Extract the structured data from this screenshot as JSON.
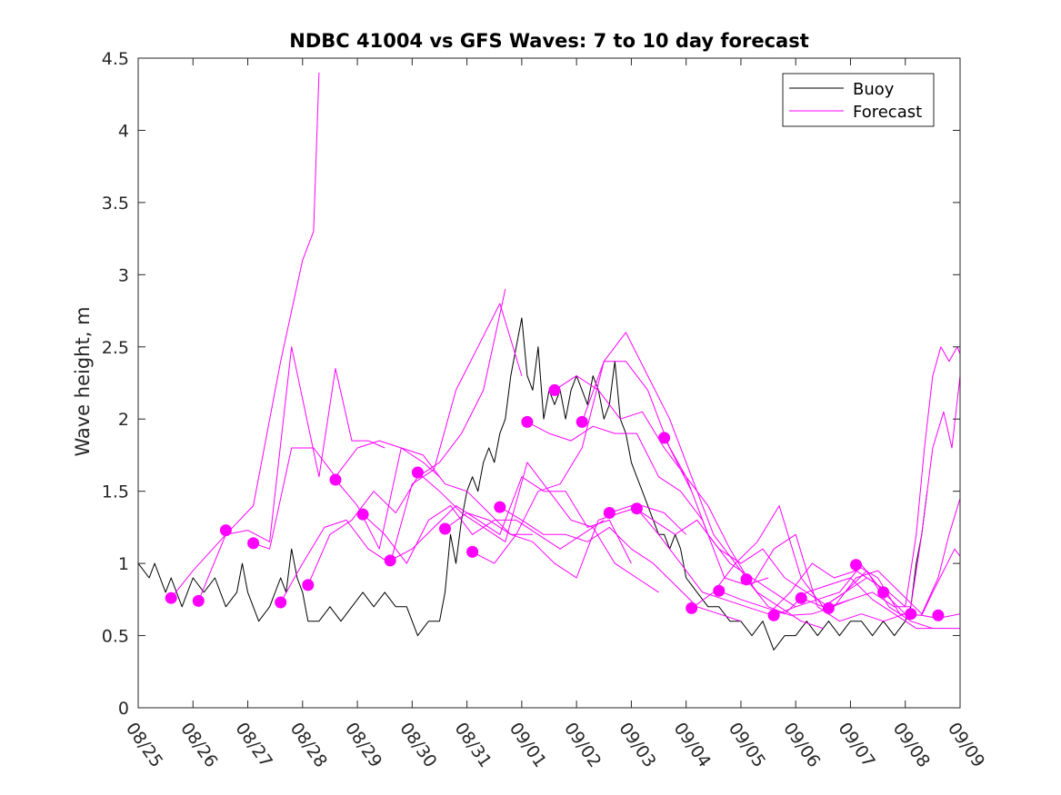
{
  "chart_data": {
    "type": "line",
    "title": "NDBC 41004 vs GFS Waves: 7 to 10 day forecast",
    "xlabel": "",
    "ylabel": "Wave height, m",
    "ylim": [
      0,
      4.5
    ],
    "xlim": [
      0,
      15
    ],
    "y_ticks": [
      0,
      0.5,
      1,
      1.5,
      2,
      2.5,
      3,
      3.5,
      4,
      4.5
    ],
    "y_tick_labels": [
      "0",
      "0.5",
      "1",
      "1.5",
      "2",
      "2.5",
      "3",
      "3.5",
      "4",
      "4.5"
    ],
    "x_ticks": [
      0,
      1,
      2,
      3,
      4,
      5,
      6,
      7,
      8,
      9,
      10,
      11,
      12,
      13,
      14,
      15
    ],
    "x_tick_labels": [
      "08/25",
      "08/26",
      "08/27",
      "08/28",
      "08/29",
      "08/30",
      "08/31",
      "09/01",
      "09/02",
      "09/03",
      "09/04",
      "09/05",
      "09/06",
      "09/07",
      "09/08",
      "09/09"
    ],
    "legend": {
      "placement": "top-right",
      "entries": [
        {
          "label": "Buoy",
          "color": "#000000"
        },
        {
          "label": "Forecast",
          "color": "#ff00ff"
        }
      ]
    },
    "grid": false,
    "colors": {
      "buoy": "#000000",
      "forecast": "#ff00ff"
    },
    "series": [
      {
        "name": "Buoy",
        "x": [
          0,
          0.2,
          0.3,
          0.5,
          0.6,
          0.7,
          0.8,
          0.9,
          1.0,
          1.2,
          1.4,
          1.6,
          1.8,
          1.9,
          2.0,
          2.2,
          2.4,
          2.6,
          2.7,
          2.8,
          2.9,
          3.0,
          3.1,
          3.3,
          3.5,
          3.7,
          3.9,
          4.1,
          4.3,
          4.5,
          4.7,
          4.9,
          5.1,
          5.3,
          5.5,
          5.6,
          5.7,
          5.8,
          5.9,
          6.0,
          6.1,
          6.2,
          6.3,
          6.4,
          6.5,
          6.6,
          6.7,
          6.8,
          6.9,
          7.0,
          7.1,
          7.2,
          7.3,
          7.4,
          7.5,
          7.6,
          7.7,
          7.8,
          7.9,
          8.0,
          8.1,
          8.2,
          8.3,
          8.4,
          8.5,
          8.6,
          8.7,
          8.8,
          8.9,
          9.0,
          9.1,
          9.2,
          9.3,
          9.4,
          9.5,
          9.6,
          9.7,
          9.8,
          9.9,
          10.0,
          10.2,
          10.4,
          10.6,
          10.8,
          11.0,
          11.2,
          11.4,
          11.6,
          11.8,
          12.0,
          12.2,
          12.4,
          12.6,
          12.8,
          13.0,
          13.2,
          13.4,
          13.6,
          13.8,
          14.0,
          14.1,
          14.2,
          14.3,
          14.4
        ],
        "y": [
          1.0,
          0.9,
          1.0,
          0.8,
          0.9,
          0.8,
          0.7,
          0.8,
          0.9,
          0.8,
          0.9,
          0.7,
          0.8,
          1.0,
          0.8,
          0.6,
          0.7,
          0.9,
          0.8,
          1.1,
          0.9,
          0.8,
          0.6,
          0.6,
          0.7,
          0.6,
          0.7,
          0.8,
          0.7,
          0.8,
          0.7,
          0.7,
          0.5,
          0.6,
          0.6,
          0.8,
          1.2,
          1.0,
          1.3,
          1.5,
          1.6,
          1.5,
          1.7,
          1.8,
          1.7,
          1.9,
          2.0,
          2.3,
          2.5,
          2.7,
          2.3,
          2.2,
          2.5,
          2.0,
          2.2,
          2.1,
          2.2,
          2.0,
          2.2,
          2.3,
          2.2,
          2.1,
          2.3,
          2.2,
          2.0,
          2.1,
          2.4,
          2.0,
          1.9,
          1.7,
          1.6,
          1.5,
          1.4,
          1.3,
          1.2,
          1.2,
          1.1,
          1.2,
          1.1,
          0.9,
          0.8,
          0.7,
          0.7,
          0.6,
          0.6,
          0.5,
          0.6,
          0.4,
          0.5,
          0.5,
          0.6,
          0.5,
          0.6,
          0.5,
          0.6,
          0.6,
          0.5,
          0.6,
          0.5,
          0.6,
          0.7,
          1.0,
          1.2,
          1.5
        ]
      },
      {
        "name": "Forecast",
        "x": [
          0.6,
          1.0,
          1.6,
          2.1,
          2.6,
          3.0,
          3.2,
          3.3
        ],
        "y": [
          0.76,
          0.95,
          1.2,
          1.4,
          2.4,
          3.1,
          3.3,
          4.4
        ]
      },
      {
        "name": "Forecast",
        "x": [
          1.1,
          1.6,
          2.0,
          2.4,
          2.8,
          3.3,
          3.6,
          3.9,
          4.2,
          4.5
        ],
        "y": [
          0.74,
          1.2,
          1.23,
          1.15,
          2.5,
          1.6,
          2.35,
          1.85,
          1.85,
          1.8
        ]
      },
      {
        "name": "Forecast",
        "x": [
          2.1,
          2.4,
          2.8,
          3.2,
          3.6,
          4.0,
          4.4,
          4.8,
          5.2,
          5.5
        ],
        "y": [
          1.14,
          1.1,
          1.8,
          1.8,
          1.6,
          1.8,
          1.85,
          1.8,
          1.7,
          1.6
        ]
      },
      {
        "name": "Forecast",
        "x": [
          2.6,
          3.0,
          3.4,
          3.8,
          4.2,
          4.6,
          5.0,
          5.4,
          5.8,
          6.2,
          6.6,
          7.0
        ],
        "y": [
          0.73,
          1.0,
          1.25,
          1.3,
          1.1,
          1.0,
          1.55,
          1.65,
          2.2,
          2.5,
          2.8,
          2.3
        ]
      },
      {
        "name": "Forecast",
        "x": [
          3.1,
          3.5,
          3.9,
          4.3,
          4.7,
          5.1,
          5.5,
          5.9,
          6.3,
          6.7
        ],
        "y": [
          0.85,
          1.2,
          1.3,
          1.5,
          1.35,
          1.6,
          1.7,
          1.9,
          2.2,
          2.9
        ]
      },
      {
        "name": "Forecast",
        "x": [
          3.6,
          4.0,
          4.4,
          4.8,
          5.2,
          5.6,
          6.0,
          6.4,
          6.8,
          7.2
        ],
        "y": [
          1.58,
          1.4,
          1.1,
          1.8,
          1.75,
          1.55,
          1.5,
          1.35,
          1.2,
          1.2
        ]
      },
      {
        "name": "Forecast",
        "x": [
          4.1,
          4.5,
          4.9,
          5.3,
          5.7,
          6.1,
          6.5,
          6.9,
          7.3,
          7.7,
          8.1,
          8.5
        ],
        "y": [
          1.34,
          1.2,
          1.0,
          1.3,
          1.4,
          1.2,
          1.3,
          1.3,
          1.2,
          1.1,
          1.2,
          1.3
        ]
      },
      {
        "name": "Forecast",
        "x": [
          4.6,
          5.0,
          5.4,
          5.8,
          6.2,
          6.6,
          7.0,
          7.4,
          7.8,
          8.2,
          8.6,
          9.0
        ],
        "y": [
          1.02,
          1.1,
          1.25,
          1.4,
          1.3,
          1.2,
          1.6,
          1.5,
          1.5,
          1.25,
          1.3,
          1.0
        ]
      },
      {
        "name": "Forecast",
        "x": [
          5.1,
          5.5,
          5.9,
          6.3,
          6.7,
          7.1,
          7.5,
          7.9,
          8.3,
          8.7,
          9.1,
          9.5
        ],
        "y": [
          1.63,
          1.5,
          1.35,
          1.25,
          1.15,
          1.7,
          1.5,
          1.3,
          1.25,
          1.0,
          0.9,
          0.8
        ]
      },
      {
        "name": "Forecast",
        "x": [
          5.6,
          6.0,
          6.4,
          6.8,
          7.2,
          7.6,
          8.0,
          8.4,
          8.8,
          9.2,
          9.6,
          10.0
        ],
        "y": [
          1.24,
          1.35,
          1.3,
          1.2,
          1.15,
          1.0,
          0.9,
          1.3,
          1.35,
          1.4,
          1.35,
          1.2
        ]
      },
      {
        "name": "Forecast",
        "x": [
          6.1,
          6.5,
          6.9,
          7.3,
          7.7,
          8.1,
          8.5,
          8.9,
          9.3,
          9.7,
          10.1
        ],
        "y": [
          1.08,
          1.0,
          1.2,
          1.5,
          1.55,
          1.8,
          2.4,
          2.4,
          2.2,
          1.8,
          1.5
        ]
      },
      {
        "name": "Forecast",
        "x": [
          6.6,
          7.0,
          7.4,
          7.8,
          8.2,
          8.6,
          9.0,
          9.4,
          9.8,
          10.2,
          10.6,
          11.0
        ],
        "y": [
          1.39,
          1.3,
          1.2,
          1.2,
          1.15,
          1.25,
          1.1,
          1.0,
          0.85,
          0.7,
          0.65,
          0.6
        ]
      },
      {
        "name": "Forecast",
        "x": [
          7.1,
          7.5,
          7.9,
          8.3,
          8.7,
          9.1,
          9.5,
          9.9,
          10.3,
          10.7,
          11.1,
          11.5
        ],
        "y": [
          1.98,
          1.9,
          1.85,
          1.95,
          1.9,
          1.9,
          1.6,
          1.5,
          1.3,
          0.9,
          0.85,
          0.9
        ]
      },
      {
        "name": "Forecast",
        "x": [
          7.6,
          8.0,
          8.4,
          8.8,
          9.2,
          9.6,
          10.0,
          10.4,
          10.8,
          11.2,
          11.6,
          12.0
        ],
        "y": [
          2.2,
          2.3,
          2.2,
          2.0,
          2.05,
          1.8,
          1.6,
          1.2,
          1.0,
          0.9,
          0.8,
          0.7
        ]
      },
      {
        "name": "Forecast",
        "x": [
          8.1,
          8.5,
          8.9,
          9.3,
          9.7,
          10.1,
          10.5,
          10.9,
          11.3,
          11.7,
          12.1,
          12.5
        ],
        "y": [
          1.98,
          2.4,
          2.6,
          2.3,
          2.0,
          1.6,
          1.2,
          1.0,
          0.8,
          0.7,
          0.6,
          0.55
        ]
      },
      {
        "name": "Forecast",
        "x": [
          8.6,
          9.0,
          9.4,
          9.8,
          10.2,
          10.6,
          11.0,
          11.4,
          11.8,
          12.2,
          12.6,
          13.0
        ],
        "y": [
          1.35,
          1.4,
          1.3,
          1.2,
          1.3,
          1.1,
          1.0,
          1.1,
          0.9,
          0.8,
          0.7,
          0.75
        ]
      },
      {
        "name": "Forecast",
        "x": [
          9.1,
          9.5,
          9.9,
          10.3,
          10.7,
          11.1,
          11.5,
          11.9,
          12.3,
          12.7,
          13.1,
          13.5
        ],
        "y": [
          1.38,
          1.2,
          1.0,
          0.8,
          0.75,
          0.7,
          0.65,
          0.8,
          1.0,
          0.9,
          0.95,
          0.85
        ]
      },
      {
        "name": "Forecast",
        "x": [
          9.6,
          10.0,
          10.4,
          10.8,
          11.2,
          11.6,
          12.0,
          12.4,
          12.8,
          13.2,
          13.6,
          14.0
        ],
        "y": [
          1.87,
          1.6,
          1.4,
          1.1,
          0.85,
          1.1,
          1.2,
          0.7,
          0.6,
          0.65,
          0.6,
          0.65
        ]
      },
      {
        "name": "Forecast",
        "x": [
          10.1,
          10.5,
          10.9,
          11.3,
          11.7,
          12.1,
          12.5,
          12.9,
          13.3,
          13.7,
          14.1,
          14.5
        ],
        "y": [
          0.69,
          0.8,
          1.0,
          1.15,
          1.4,
          0.9,
          0.7,
          0.8,
          0.95,
          0.7,
          0.6,
          0.55
        ]
      },
      {
        "name": "Forecast",
        "x": [
          10.6,
          11.0,
          11.4,
          11.8,
          12.2,
          12.6,
          13.0,
          13.4,
          13.8,
          14.2,
          14.6,
          15.0
        ],
        "y": [
          0.81,
          0.75,
          0.7,
          0.65,
          0.8,
          0.85,
          0.9,
          0.75,
          0.65,
          0.55,
          0.55,
          0.55
        ]
      },
      {
        "name": "Forecast",
        "x": [
          11.1,
          11.5,
          11.9,
          12.3,
          12.7,
          13.1,
          13.5,
          13.9,
          14.3,
          14.6,
          14.8,
          15.0
        ],
        "y": [
          0.89,
          0.7,
          0.64,
          0.65,
          0.7,
          0.9,
          0.95,
          0.8,
          0.65,
          0.9,
          1.2,
          1.45
        ]
      },
      {
        "name": "Forecast",
        "x": [
          11.6,
          12.0,
          12.4,
          12.8,
          13.2,
          13.6,
          14.0,
          14.3,
          14.5,
          14.7,
          14.9,
          15.0
        ],
        "y": [
          0.64,
          0.7,
          0.75,
          0.8,
          0.99,
          0.8,
          0.65,
          0.64,
          0.8,
          0.95,
          1.1,
          1.05
        ]
      },
      {
        "name": "Forecast",
        "x": [
          12.1,
          12.5,
          12.9,
          13.3,
          13.7,
          14.0,
          14.2,
          14.35,
          14.5,
          14.65,
          14.8,
          14.95,
          15.0
        ],
        "y": [
          0.76,
          0.7,
          0.8,
          0.9,
          0.8,
          0.7,
          1.2,
          1.8,
          2.3,
          2.5,
          2.4,
          2.5,
          2.45
        ]
      },
      {
        "name": "Forecast",
        "x": [
          12.6,
          13.0,
          13.4,
          13.8,
          14.1,
          14.3,
          14.5,
          14.7,
          14.85,
          15.0
        ],
        "y": [
          0.69,
          0.75,
          0.8,
          0.7,
          0.7,
          1.2,
          1.8,
          2.05,
          1.8,
          2.3
        ]
      },
      {
        "name": "Forecast",
        "x": [
          13.1,
          13.5,
          13.9,
          14.3,
          14.6,
          15.0
        ],
        "y": [
          0.99,
          0.9,
          0.65,
          0.64,
          0.62,
          0.65
        ]
      }
    ],
    "forecast_markers": {
      "x": [
        0.6,
        1.1,
        1.6,
        2.1,
        2.6,
        3.1,
        3.6,
        4.1,
        4.6,
        5.1,
        5.6,
        6.1,
        6.6,
        7.1,
        7.6,
        8.1,
        8.6,
        9.1,
        9.6,
        10.1,
        10.6,
        11.1,
        11.6,
        12.1,
        12.6,
        13.1,
        13.6,
        14.1,
        14.6
      ],
      "y": [
        0.76,
        0.74,
        1.23,
        1.14,
        0.73,
        0.85,
        1.58,
        1.34,
        1.02,
        1.63,
        1.24,
        1.08,
        1.39,
        1.98,
        2.2,
        1.98,
        1.35,
        1.38,
        1.87,
        0.69,
        0.81,
        0.89,
        0.64,
        0.76,
        0.69,
        0.99,
        0.8,
        0.65,
        0.64
      ]
    }
  }
}
